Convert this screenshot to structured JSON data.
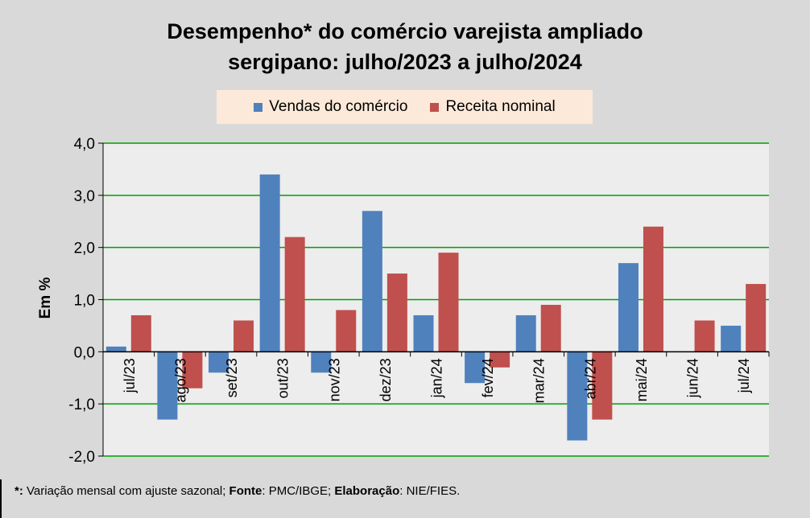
{
  "chart_data": {
    "type": "bar",
    "title": "Desempenho* do comércio varejista ampliado sergipano: julho/2023 a julho/2024",
    "title_lines": [
      "Desempenho* do comércio varejista ampliado",
      "sergipano: julho/2023 a julho/2024"
    ],
    "ylabel": "Em %",
    "xlabel": "",
    "ylim": [
      -2,
      4
    ],
    "yticks": [
      4,
      3,
      2,
      1,
      0,
      -1,
      -2
    ],
    "ytick_labels": [
      "4,0",
      "3,0",
      "2,0",
      "1,0",
      "0,0",
      "-1,0",
      "-2,0"
    ],
    "grid": true,
    "legend_position": "top",
    "categories": [
      "jul/23",
      "ago/23",
      "set/23",
      "out/23",
      "nov/23",
      "dez/23",
      "jan/24",
      "fev/24",
      "mar/24",
      "abr/24",
      "mai/24",
      "jun/24",
      "jul/24"
    ],
    "series": [
      {
        "name": "Vendas do comércio",
        "color": "#4f81bd",
        "values": [
          0.1,
          -1.3,
          -0.4,
          3.4,
          -0.4,
          2.7,
          0.7,
          -0.6,
          0.7,
          -1.7,
          1.7,
          0.0,
          0.5
        ]
      },
      {
        "name": "Receita nominal",
        "color": "#c0504d",
        "values": [
          0.7,
          -0.7,
          0.6,
          2.2,
          0.8,
          1.5,
          1.9,
          -0.3,
          0.9,
          -1.3,
          2.4,
          0.6,
          1.3
        ]
      }
    ]
  },
  "footer": {
    "star": "*:",
    "note": " Variação mensal com ajuste sazonal; ",
    "fonte_label": "Fonte",
    "fonte": ": PMC/IBGE; ",
    "elab_label": "Elaboração",
    "elab": ": NIE/FIES."
  }
}
